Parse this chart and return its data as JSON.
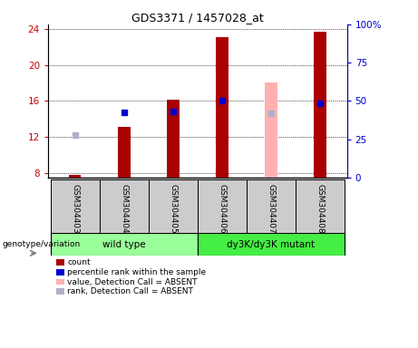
{
  "title": "GDS3371 / 1457028_at",
  "samples": [
    "GSM304403",
    "GSM304404",
    "GSM304405",
    "GSM304406",
    "GSM304407",
    "GSM304408"
  ],
  "ylim_left": [
    7.5,
    24.5
  ],
  "ylim_right": [
    0,
    100
  ],
  "yticks_left": [
    8,
    12,
    16,
    20,
    24
  ],
  "yticks_left_labels": [
    "8",
    "12",
    "16",
    "20",
    "24"
  ],
  "yticks_right": [
    0,
    25,
    50,
    75,
    100
  ],
  "yticks_right_labels": [
    "0",
    "25",
    "50",
    "75",
    "100%"
  ],
  "bar_bottom": 7.5,
  "count_values": [
    7.8,
    13.1,
    16.1,
    23.1,
    null,
    23.7
  ],
  "rank_values": [
    null,
    14.75,
    14.85,
    16.05,
    null,
    15.7
  ],
  "absent_value": [
    null,
    null,
    null,
    null,
    18.0,
    null
  ],
  "absent_rank": [
    12.25,
    null,
    null,
    null,
    14.65,
    null
  ],
  "count_color": "#aa0000",
  "rank_color": "#0000cc",
  "absent_value_color": "#ffb0b0",
  "absent_rank_color": "#b0b0cc",
  "group1_label": "wild type",
  "group2_label": "dy3K/dy3K mutant",
  "group1_color": "#99ff99",
  "group2_color": "#44ee44",
  "sample_bg_color": "#cccccc",
  "legend_items": [
    {
      "color": "#aa0000",
      "label": "count"
    },
    {
      "color": "#0000cc",
      "label": "percentile rank within the sample"
    },
    {
      "color": "#ffb0b0",
      "label": "value, Detection Call = ABSENT"
    },
    {
      "color": "#b0b0cc",
      "label": "rank, Detection Call = ABSENT"
    }
  ],
  "bar_width": 0.25,
  "marker_size": 5,
  "genotype_label": "genotype/variation"
}
